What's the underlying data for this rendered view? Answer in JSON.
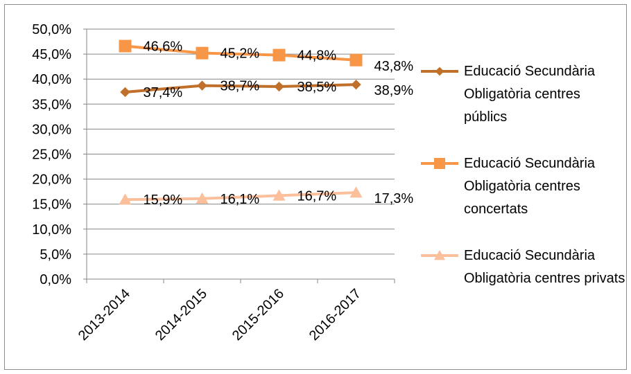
{
  "chart_data": {
    "type": "line",
    "categories": [
      "2013-2014",
      "2014-2015",
      "2015-2016",
      "2016-2017"
    ],
    "series": [
      {
        "name": "Educació Secundària Obligatòria centres públics",
        "color": "#c0702a",
        "marker": "diamond",
        "values": [
          37.4,
          38.7,
          38.5,
          38.9
        ],
        "value_labels": [
          "37,4%",
          "38,7%",
          "38,5%",
          "38,9%"
        ]
      },
      {
        "name": "Educació Secundària Obligatòria centres concertats",
        "color": "#f79646",
        "marker": "square",
        "values": [
          46.6,
          45.2,
          44.8,
          43.8
        ],
        "value_labels": [
          "46,6%",
          "45,2%",
          "44,8%",
          "43,8%"
        ]
      },
      {
        "name": "Educació Secundària Obligatòria centres privats",
        "color": "#fbbf9b",
        "marker": "triangle",
        "values": [
          15.9,
          16.1,
          16.7,
          17.3
        ],
        "value_labels": [
          "15,9%",
          "16,1%",
          "16,7%",
          "17,3%"
        ]
      }
    ],
    "ylim": [
      0,
      50
    ],
    "yticks": [
      {
        "value": 0,
        "label": "0,0%"
      },
      {
        "value": 5,
        "label": "5,0%"
      },
      {
        "value": 10,
        "label": "10,0%"
      },
      {
        "value": 15,
        "label": "15,0%"
      },
      {
        "value": 20,
        "label": "20,0%"
      },
      {
        "value": 25,
        "label": "25,0%"
      },
      {
        "value": 30,
        "label": "30,0%"
      },
      {
        "value": 35,
        "label": "35,0%"
      },
      {
        "value": 40,
        "label": "40,0%"
      },
      {
        "value": 45,
        "label": "45,0%"
      },
      {
        "value": 50,
        "label": "50,0%"
      }
    ],
    "grid": true,
    "legend": "right"
  }
}
